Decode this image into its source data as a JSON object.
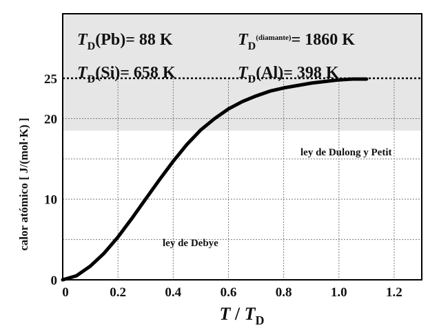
{
  "chart_data": {
    "type": "line",
    "xlabel": {
      "var": "T",
      "sep": " / ",
      "var2": "T",
      "sub": "D"
    },
    "ylabel": "calor atómico [ J/(mol·K) ]",
    "x_ticks": [
      "0",
      "0.2",
      "0.4",
      "0.6",
      "0.8",
      "1.0",
      "1.2"
    ],
    "y_ticks": [
      {
        "label": "0",
        "value": 0
      },
      {
        "label": "10",
        "value": 10
      },
      {
        "label": "20",
        "value": 20
      },
      {
        "label": "25",
        "value": 25
      }
    ],
    "xlim": [
      0,
      1.3
    ],
    "ylim": [
      0,
      33
    ],
    "grid": true,
    "series": [
      {
        "x": [
          0,
          0.05,
          0.1,
          0.15,
          0.2,
          0.25,
          0.3,
          0.35,
          0.4,
          0.45,
          0.5,
          0.55,
          0.6,
          0.65,
          0.7,
          0.75,
          0.8,
          0.85,
          0.9,
          0.95,
          1.0,
          1.05,
          1.1
        ],
        "y": [
          0,
          0.5,
          1.7,
          3.3,
          5.3,
          7.6,
          10.0,
          12.4,
          14.7,
          16.8,
          18.6,
          20.0,
          21.2,
          22.1,
          22.8,
          23.4,
          23.8,
          24.1,
          24.4,
          24.6,
          24.8,
          24.9,
          24.9
        ],
        "color": "#000000"
      }
    ],
    "reference_line": {
      "y": 25,
      "style": "dotted"
    },
    "annotations": {
      "debye": "ley de Debye",
      "dulong": "ley de Dulong y Petit"
    },
    "td_box": {
      "background": "#e6e6e6",
      "entries": [
        {
          "var": "T",
          "sub": "D",
          "name": "(Pb)",
          "value": "= 88 K"
        },
        {
          "var": "T",
          "sub": "D",
          "name": "(diamante)",
          "value": "= 1860 K"
        },
        {
          "var": "T",
          "sub": "D",
          "name": "(Si)",
          "value": "= 658 K"
        },
        {
          "var": "T",
          "sub": "D",
          "name": "(Al)",
          "value": "= 398 K"
        }
      ]
    }
  }
}
